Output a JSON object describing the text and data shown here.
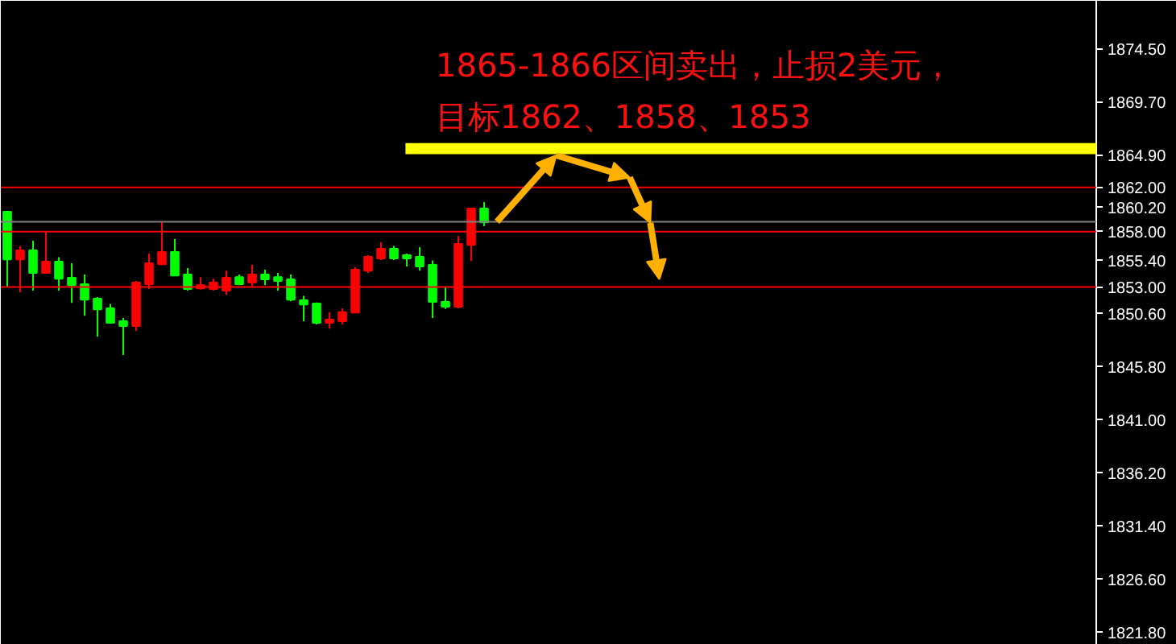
{
  "chart_data": {
    "type": "candlestick",
    "annotations": [
      "1865-1866区间卖出，止损2美元，",
      "目标1862、1858、1853"
    ],
    "categories": [
      null,
      null,
      null,
      null,
      null,
      null,
      null,
      null,
      null,
      null,
      null,
      null,
      null,
      null,
      null,
      null,
      null,
      null,
      null,
      null,
      null,
      null,
      null,
      null,
      null,
      null,
      null,
      null,
      null,
      null,
      null,
      null,
      null,
      null,
      null,
      null,
      null,
      null,
      null,
      null,
      null,
      null,
      null,
      null,
      null,
      null,
      null,
      null,
      null,
      null,
      null,
      null,
      null,
      null,
      null,
      null,
      null,
      null,
      null,
      null,
      null,
      null,
      null,
      null,
      null,
      null,
      null,
      null,
      null,
      null,
      null,
      null,
      null,
      null,
      null,
      null,
      null,
      null,
      null,
      null,
      null,
      null,
      null,
      null,
      null
    ],
    "ohlc": [
      [
        1859.8,
        1859.8,
        1853.0,
        1855.5
      ],
      [
        1855.49,
        1856.71,
        1852.54,
        1856.32
      ],
      [
        1856.32,
        1857.19,
        1852.68,
        1854.28
      ],
      [
        1854.28,
        1858.02,
        1854.23,
        1855.3
      ],
      [
        1855.3,
        1855.69,
        1852.68,
        1853.75
      ],
      [
        1853.85,
        1855.16,
        1851.57,
        1853.17
      ],
      [
        1853.26,
        1854.14,
        1850.4,
        1851.86
      ],
      [
        1851.95,
        1852.1,
        1848.51,
        1850.98
      ],
      [
        1851.08,
        1851.47,
        1849.72,
        1849.77
      ],
      [
        1849.92,
        1850.21,
        1846.86,
        1849.48
      ],
      [
        1849.48,
        1853.55,
        1849.04,
        1853.41
      ],
      [
        1853.26,
        1856.03,
        1852.83,
        1855.15
      ],
      [
        1855.06,
        1858.89,
        1855.01,
        1856.17
      ],
      [
        1856.17,
        1857.34,
        1854.04,
        1854.04
      ],
      [
        1854.14,
        1854.72,
        1852.68,
        1852.83
      ],
      [
        1852.88,
        1853.89,
        1852.78,
        1853.17
      ],
      [
        1852.83,
        1853.75,
        1852.68,
        1853.41
      ],
      [
        1852.68,
        1854.48,
        1852.29,
        1853.85
      ],
      [
        1853.89,
        1854.14,
        1853.17,
        1853.26
      ],
      [
        1853.41,
        1855.01,
        1853.07,
        1854.14
      ],
      [
        1854.14,
        1854.57,
        1853.17,
        1853.7
      ],
      [
        1853.89,
        1854.28,
        1852.68,
        1853.55
      ],
      [
        1853.7,
        1854.14,
        1851.71,
        1851.86
      ],
      [
        1851.81,
        1852.2,
        1849.92,
        1851.42
      ],
      [
        1851.52,
        1851.61,
        1849.63,
        1849.77
      ],
      [
        1849.77,
        1850.74,
        1849.24,
        1850.06
      ],
      [
        1849.92,
        1851.08,
        1849.63,
        1850.74
      ],
      [
        1850.69,
        1854.81,
        1850.64,
        1854.57
      ],
      [
        1854.48,
        1855.88,
        1854.28,
        1855.74
      ],
      [
        1855.59,
        1857.05,
        1855.44,
        1856.46
      ],
      [
        1856.46,
        1856.71,
        1855.44,
        1855.59
      ],
      [
        1855.88,
        1856.03,
        1854.86,
        1855.59
      ],
      [
        1855.74,
        1856.61,
        1854.48,
        1854.86
      ],
      [
        1855.01,
        1855.4,
        1850.21,
        1851.66
      ],
      [
        1851.66,
        1853.02,
        1851.03,
        1851.22
      ],
      [
        1851.22,
        1857.63,
        1851.08,
        1856.9
      ],
      [
        1856.8,
        1860.1,
        1855.35,
        1860.1
      ],
      [
        1860.1,
        1860.68,
        1858.5,
        1858.84
      ],
      null,
      null,
      null,
      null,
      null,
      null,
      null,
      null,
      null,
      null,
      null,
      null,
      null,
      null,
      null,
      null,
      null,
      null,
      null,
      null,
      null,
      null,
      null,
      null,
      null,
      null,
      null,
      null,
      null,
      null,
      null,
      null,
      null,
      null,
      null,
      null,
      null,
      null,
      null,
      null,
      null,
      null,
      null,
      null,
      null,
      null,
      null
    ],
    "colors": [
      "#00ff00",
      "#ff0000",
      "#00ff00",
      "#ff0000",
      "#00ff00",
      "#00ff00",
      "#00ff00",
      "#00ff00",
      "#00ff00",
      "#00ff00",
      "#ff0000",
      "#ff0000",
      "#ff0000",
      "#00ff00",
      "#00ff00",
      "#ff0000",
      "#ff0000",
      "#ff0000",
      "#00ff00",
      "#ff0000",
      "#00ff00",
      "#00ff00",
      "#00ff00",
      "#00ff00",
      "#00ff00",
      "#ff0000",
      "#ff0000",
      "#ff0000",
      "#ff0000",
      "#ff0000",
      "#00ff00",
      "#00ff00",
      "#00ff00",
      "#00ff00",
      "#00ff00",
      "#ff0000",
      "#ff0000",
      "#00ff00",
      null,
      null,
      null,
      null,
      null,
      null,
      null,
      null,
      null,
      null,
      null,
      null,
      null,
      null,
      null,
      null,
      null,
      null,
      null,
      null,
      null,
      null,
      null,
      null,
      null,
      null,
      null,
      null,
      null,
      null,
      null,
      null,
      null,
      null,
      null,
      null,
      null,
      null,
      null,
      null,
      null,
      null,
      null,
      null,
      null,
      null,
      null
    ],
    "ylim": [
      1820.68,
      1878.86
    ],
    "yticks": [
      {
        "value": 1874.5,
        "label": "1874.50"
      },
      {
        "value": 1869.7,
        "label": "1869.70"
      },
      {
        "value": 1864.9,
        "label": "1864.90"
      },
      {
        "value": 1860.2,
        "label": "1860.20"
      },
      {
        "value": 1855.4,
        "label": "1855.40"
      },
      {
        "value": 1850.6,
        "label": "1850.60"
      },
      {
        "value": 1845.8,
        "label": "1845.80"
      },
      {
        "value": 1841.0,
        "label": "1841.00"
      },
      {
        "value": 1836.2,
        "label": "1836.20"
      },
      {
        "value": 1831.4,
        "label": "1831.40"
      },
      {
        "value": 1826.6,
        "label": "1826.60"
      },
      {
        "value": 1821.8,
        "label": "1821.80"
      }
    ],
    "ref_lines": [
      {
        "axis": "y",
        "value": 1862,
        "label": "1862.00",
        "color": "#ff0000"
      },
      {
        "axis": "y",
        "value": 1858.9,
        "label": null,
        "color": "#808080"
      },
      {
        "axis": "y",
        "value": 1858,
        "label": "1858.00",
        "color": "#ff0000"
      },
      {
        "axis": "y",
        "value": 1853,
        "label": "1853.00",
        "color": "#ff0000"
      }
    ],
    "bands": [
      {
        "axis": "y",
        "from": 1865,
        "to": 1866,
        "label": null,
        "color": "#ffff00"
      }
    ],
    "grid": false,
    "tick_labels": "y"
  }
}
